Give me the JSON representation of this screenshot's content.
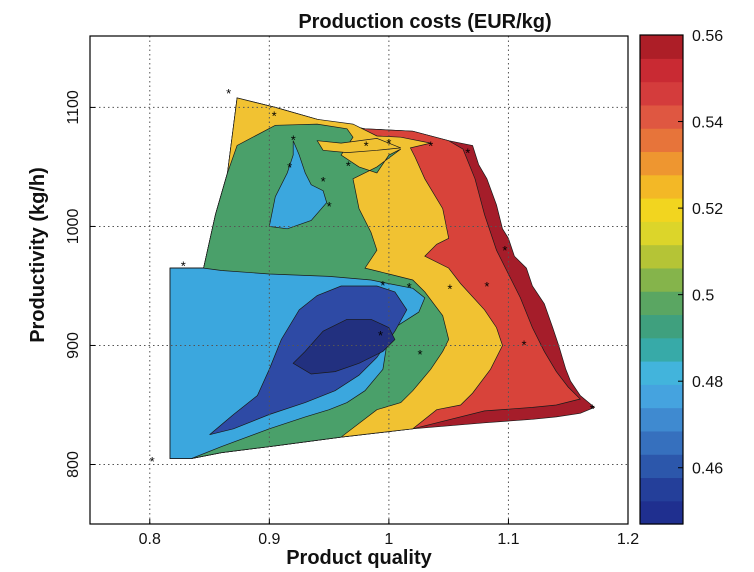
{
  "chart_data": {
    "type": "contourf",
    "title": "Production costs (EUR/kg)",
    "xlabel": "Product quality",
    "ylabel": "Productivity (kg/h)",
    "xlim": [
      0.75,
      1.2
    ],
    "ylim": [
      750,
      1160
    ],
    "x_ticks": [
      "0.8",
      "0.9",
      "1",
      "1.1",
      "1.2"
    ],
    "y_ticks": [
      "800",
      "900",
      "1000",
      "1100"
    ],
    "grid": true,
    "colorbar": {
      "range": [
        0.447,
        0.56
      ],
      "ticks": [
        "0.46",
        "0.48",
        "0.5",
        "0.52",
        "0.54",
        "0.56"
      ],
      "colormap": [
        "#1f2f8f",
        "#243f9a",
        "#2c57ab",
        "#3670be",
        "#3f8ad0",
        "#45a3df",
        "#42b4dc",
        "#37aaa8",
        "#3fa07e",
        "#5aa662",
        "#85b44b",
        "#b5c436",
        "#dcd52a",
        "#f2d51f",
        "#f3b826",
        "#ee9630",
        "#e7743a",
        "#df5741",
        "#d43c3c",
        "#c92a33",
        "#ad1e27"
      ]
    },
    "regions": [
      {
        "level": 0.54,
        "color": "#a51d2a"
      },
      {
        "level": 0.53,
        "color": "#d8433a"
      },
      {
        "level": 0.515,
        "color": "#f1c232"
      },
      {
        "level": 0.495,
        "color": "#4aa06a"
      },
      {
        "level": 0.475,
        "color": "#3ba7de"
      },
      {
        "level": 0.46,
        "color": "#2e4aa5"
      },
      {
        "level": 0.452,
        "color": "#22307f"
      }
    ],
    "markers": [
      [
        0.802,
        803
      ],
      [
        0.828,
        967
      ],
      [
        0.866,
        1112
      ],
      [
        0.904,
        1093
      ],
      [
        0.92,
        1073
      ],
      [
        0.917,
        1050
      ],
      [
        0.945,
        1038
      ],
      [
        0.95,
        1017
      ],
      [
        0.966,
        1051
      ],
      [
        0.981,
        1068
      ],
      [
        1.0,
        1070
      ],
      [
        1.035,
        1068
      ],
      [
        1.066,
        1062
      ],
      [
        1.097,
        980
      ],
      [
        1.082,
        950
      ],
      [
        1.051,
        948
      ],
      [
        1.017,
        949
      ],
      [
        0.995,
        951
      ],
      [
        0.993,
        909
      ],
      [
        1.026,
        893
      ],
      [
        1.113,
        901
      ],
      [
        1.17,
        847
      ]
    ]
  }
}
